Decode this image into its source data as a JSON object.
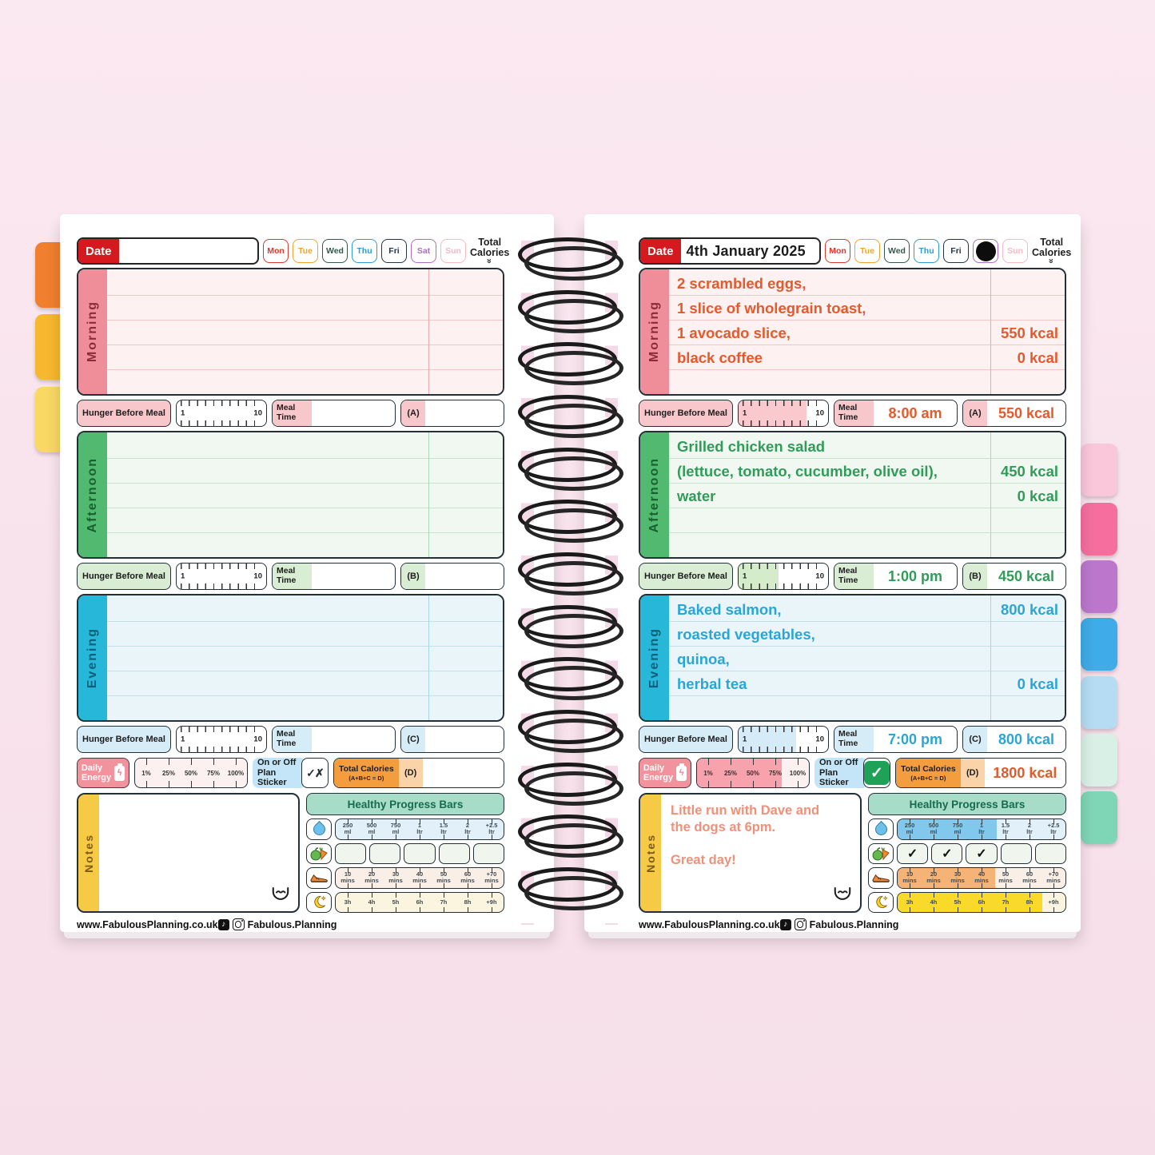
{
  "colors": {
    "background": "#f8e3ed",
    "date_red": "#d6191f",
    "morning": "#ef8e98",
    "afternoon": "#52ba70",
    "evening": "#27b7d8",
    "energy_pink": "#f2929c",
    "sticker_blue": "#c3e5f7",
    "sticker_green": "#1fa257",
    "total_orange": "#f49d3f",
    "progress_teal": "#a7dcc8",
    "notes_yellow": "#f6ca45",
    "morning_ink": "#e5592b",
    "afternoon_ink": "#2f9d58",
    "evening_ink": "#2aa6d6",
    "notes_ink": "#f09079"
  },
  "shared": {
    "date_label": "Date",
    "total_calories_header": "Total Calories",
    "chevron_glyph": "«",
    "days": [
      "Mon",
      "Tue",
      "Wed",
      "Thu",
      "Fri",
      "Sat",
      "Sun"
    ],
    "sections": [
      "Morning",
      "Afternoon",
      "Evening"
    ],
    "hunger_label": "Hunger Before Meal",
    "ruler_min": "1",
    "ruler_max": "10",
    "meal_time_label": "Meal\nTime",
    "slot_a": "(A)",
    "slot_b": "(B)",
    "slot_c": "(C)",
    "slot_d": "(D)",
    "daily_energy_label": "Daily\nEnergy",
    "battery_bolt": "ϟ",
    "energy_ticks": [
      "1%",
      "25%",
      "50%",
      "75%",
      "100%"
    ],
    "sticker_label": "On or Off\nPlan Sticker",
    "sticker_options": "✓✗",
    "total_calories_label": "Total Calories",
    "total_calories_formula": "(A+B+C = D)",
    "notes_label": "Notes",
    "progress_title": "Healthy Progress Bars",
    "water_ticks": [
      "250\nml",
      "500\nml",
      "750\nml",
      "1\nltr",
      "1.5\nltr",
      "2\nltr",
      "+2.5\nltr"
    ],
    "exercise_ticks": [
      "10\nmins",
      "20\nmins",
      "30\nmins",
      "40\nmins",
      "50\nmins",
      "60\nmins",
      "+70\nmins"
    ],
    "sleep_ticks": [
      "3h",
      "4h",
      "5h",
      "6h",
      "7h",
      "8h",
      "+9h"
    ],
    "footer_website": "www.FabulousPlanning.co.uk",
    "footer_social": "Fabulous.Planning",
    "tiktok_glyph": "♪"
  },
  "left": {
    "date_value": "",
    "morning": {
      "rows": [
        {
          "text": "",
          "kcal": ""
        },
        {
          "text": "",
          "kcal": ""
        },
        {
          "text": "",
          "kcal": ""
        },
        {
          "text": "",
          "kcal": ""
        },
        {
          "text": "",
          "kcal": ""
        }
      ],
      "hunger_percent": 0,
      "meal_time": "",
      "slot_total": ""
    },
    "afternoon": {
      "rows": [
        {
          "text": "",
          "kcal": ""
        },
        {
          "text": "",
          "kcal": ""
        },
        {
          "text": "",
          "kcal": ""
        },
        {
          "text": "",
          "kcal": ""
        },
        {
          "text": "",
          "kcal": ""
        }
      ],
      "hunger_percent": 0,
      "meal_time": "",
      "slot_total": ""
    },
    "evening": {
      "rows": [
        {
          "text": "",
          "kcal": ""
        },
        {
          "text": "",
          "kcal": ""
        },
        {
          "text": "",
          "kcal": ""
        },
        {
          "text": "",
          "kcal": ""
        },
        {
          "text": "",
          "kcal": ""
        }
      ],
      "hunger_percent": 0,
      "meal_time": "",
      "slot_total": ""
    },
    "energy_percent": 0,
    "total_d": "",
    "notes_text": "",
    "progress": {
      "water_percent": 0,
      "fruit_checks": [
        "",
        "",
        "",
        "",
        ""
      ],
      "exercise_percent": 0,
      "sleep_percent": 0
    }
  },
  "right": {
    "date_value": "4th January 2025",
    "marked_day": "Sat",
    "morning": {
      "rows": [
        {
          "text": "2 scrambled eggs,",
          "kcal": ""
        },
        {
          "text": "1 slice of wholegrain toast,",
          "kcal": ""
        },
        {
          "text": "1 avocado slice,",
          "kcal": "550 kcal"
        },
        {
          "text": "black coffee",
          "kcal": "0 kcal"
        },
        {
          "text": "",
          "kcal": ""
        }
      ],
      "hunger_percent": 76,
      "meal_time": "8:00 am",
      "slot_total": "550 kcal"
    },
    "afternoon": {
      "rows": [
        {
          "text": "Grilled chicken salad",
          "kcal": ""
        },
        {
          "text": "(lettuce, tomato, cucumber, olive oil),",
          "kcal": "450 kcal"
        },
        {
          "text": "water",
          "kcal": "0 kcal"
        },
        {
          "text": "",
          "kcal": ""
        },
        {
          "text": "",
          "kcal": ""
        }
      ],
      "hunger_percent": 45,
      "meal_time": "1:00 pm",
      "slot_total": "450 kcal"
    },
    "evening": {
      "rows": [
        {
          "text": "Baked salmon,",
          "kcal": "800 kcal"
        },
        {
          "text": "roasted vegetables,",
          "kcal": ""
        },
        {
          "text": "quinoa,",
          "kcal": ""
        },
        {
          "text": "herbal tea",
          "kcal": "0 kcal"
        },
        {
          "text": "",
          "kcal": ""
        }
      ],
      "hunger_percent": 64,
      "meal_time": "7:00 pm",
      "slot_total": "800 kcal"
    },
    "energy_percent": 76,
    "sticker_check": "✓",
    "total_d": "1800 kcal",
    "notes_text": "Little run with Dave and\nthe dogs at 6pm.\n\nGreat day!",
    "progress": {
      "water_percent": 59,
      "fruit_checks": [
        "✓",
        "✓",
        "✓",
        "",
        ""
      ],
      "exercise_percent": 58,
      "sleep_percent": 86
    }
  }
}
